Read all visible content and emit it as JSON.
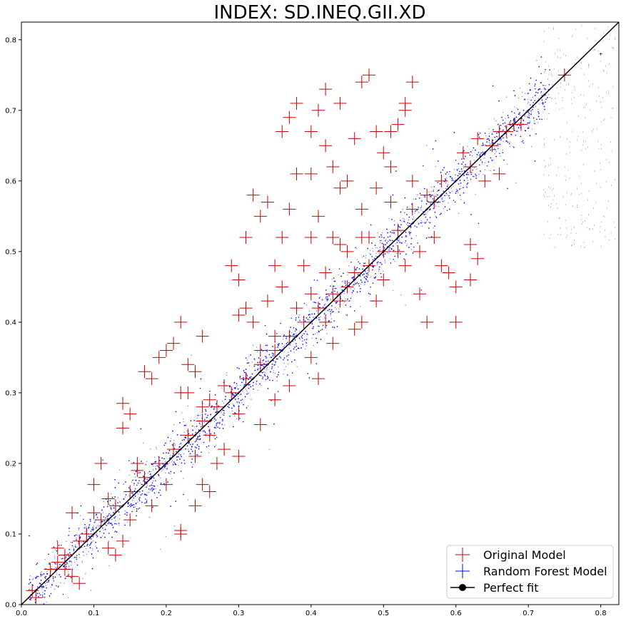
{
  "chart_data": {
    "type": "scatter",
    "title": "INDEX: SD.INEQ.GII.XD",
    "xlabel": "",
    "ylabel": "",
    "xlim": [
      0.0,
      0.825
    ],
    "ylim": [
      0.0,
      0.825
    ],
    "x_ticks": [
      "0.0",
      "0.1",
      "0.2",
      "0.3",
      "0.4",
      "0.5",
      "0.6",
      "0.7",
      "0.8"
    ],
    "y_ticks": [
      "0.0",
      "0.1",
      "0.2",
      "0.3",
      "0.4",
      "0.5",
      "0.6",
      "0.7",
      "0.8"
    ],
    "grid": false,
    "legend_position": "lower-right",
    "colors": {
      "original": "#cc0000",
      "random_forest": "#0000ff",
      "perfect_fit": "#000000"
    },
    "series": [
      {
        "name": "Original Model",
        "marker": "plus",
        "points": [
          [
            0.015,
            0.02
          ],
          [
            0.02,
            0.01
          ],
          [
            0.04,
            0.05
          ],
          [
            0.05,
            0.08
          ],
          [
            0.05,
            0.06
          ],
          [
            0.06,
            0.05
          ],
          [
            0.07,
            0.04
          ],
          [
            0.08,
            0.03
          ],
          [
            0.07,
            0.13
          ],
          [
            0.09,
            0.1
          ],
          [
            0.1,
            0.17
          ],
          [
            0.11,
            0.2
          ],
          [
            0.12,
            0.08
          ],
          [
            0.13,
            0.07
          ],
          [
            0.14,
            0.09
          ],
          [
            0.15,
            0.12
          ],
          [
            0.14,
            0.285
          ],
          [
            0.15,
            0.27
          ],
          [
            0.14,
            0.25
          ],
          [
            0.16,
            0.2
          ],
          [
            0.17,
            0.33
          ],
          [
            0.18,
            0.32
          ],
          [
            0.19,
            0.35
          ],
          [
            0.2,
            0.36
          ],
          [
            0.21,
            0.37
          ],
          [
            0.22,
            0.4
          ],
          [
            0.23,
            0.34
          ],
          [
            0.23,
            0.3
          ],
          [
            0.24,
            0.33
          ],
          [
            0.22,
            0.3
          ],
          [
            0.25,
            0.38
          ],
          [
            0.25,
            0.28
          ],
          [
            0.24,
            0.14
          ],
          [
            0.26,
            0.16
          ],
          [
            0.25,
            0.17
          ],
          [
            0.22,
            0.1
          ],
          [
            0.22,
            0.105
          ],
          [
            0.26,
            0.24
          ],
          [
            0.27,
            0.2
          ],
          [
            0.28,
            0.22
          ],
          [
            0.29,
            0.48
          ],
          [
            0.3,
            0.46
          ],
          [
            0.31,
            0.52
          ],
          [
            0.32,
            0.58
          ],
          [
            0.33,
            0.55
          ],
          [
            0.34,
            0.57
          ],
          [
            0.35,
            0.48
          ],
          [
            0.36,
            0.52
          ],
          [
            0.36,
            0.67
          ],
          [
            0.37,
            0.69
          ],
          [
            0.38,
            0.71
          ],
          [
            0.4,
            0.67
          ],
          [
            0.41,
            0.7
          ],
          [
            0.42,
            0.65
          ],
          [
            0.42,
            0.73
          ],
          [
            0.44,
            0.71
          ],
          [
            0.46,
            0.66
          ],
          [
            0.47,
            0.74
          ],
          [
            0.48,
            0.75
          ],
          [
            0.49,
            0.67
          ],
          [
            0.5,
            0.64
          ],
          [
            0.51,
            0.67
          ],
          [
            0.52,
            0.68
          ],
          [
            0.53,
            0.7
          ],
          [
            0.53,
            0.71
          ],
          [
            0.54,
            0.74
          ],
          [
            0.51,
            0.62
          ],
          [
            0.49,
            0.59
          ],
          [
            0.45,
            0.6
          ],
          [
            0.47,
            0.56
          ],
          [
            0.43,
            0.62
          ],
          [
            0.44,
            0.59
          ],
          [
            0.4,
            0.61
          ],
          [
            0.41,
            0.55
          ],
          [
            0.38,
            0.61
          ],
          [
            0.37,
            0.56
          ],
          [
            0.39,
            0.48
          ],
          [
            0.42,
            0.47
          ],
          [
            0.45,
            0.5
          ],
          [
            0.43,
            0.52
          ],
          [
            0.3,
            0.21
          ],
          [
            0.33,
            0.255
          ],
          [
            0.31,
            0.42
          ],
          [
            0.32,
            0.4
          ],
          [
            0.35,
            0.38
          ],
          [
            0.3,
            0.41
          ],
          [
            0.33,
            0.36
          ],
          [
            0.35,
            0.29
          ],
          [
            0.37,
            0.31
          ],
          [
            0.4,
            0.35
          ],
          [
            0.41,
            0.32
          ],
          [
            0.43,
            0.37
          ],
          [
            0.46,
            0.39
          ],
          [
            0.47,
            0.4
          ],
          [
            0.49,
            0.43
          ],
          [
            0.5,
            0.46
          ],
          [
            0.53,
            0.48
          ],
          [
            0.55,
            0.5
          ],
          [
            0.57,
            0.52
          ],
          [
            0.58,
            0.48
          ],
          [
            0.6,
            0.45
          ],
          [
            0.59,
            0.47
          ],
          [
            0.55,
            0.44
          ],
          [
            0.56,
            0.4
          ],
          [
            0.6,
            0.4
          ],
          [
            0.62,
            0.51
          ],
          [
            0.62,
            0.46
          ],
          [
            0.63,
            0.49
          ],
          [
            0.64,
            0.6
          ],
          [
            0.66,
            0.61
          ],
          [
            0.67,
            0.67
          ],
          [
            0.69,
            0.68
          ],
          [
            0.75,
            0.75
          ],
          [
            0.62,
            0.62
          ],
          [
            0.65,
            0.65
          ],
          [
            0.57,
            0.57
          ],
          [
            0.54,
            0.56
          ],
          [
            0.52,
            0.53
          ],
          [
            0.5,
            0.5
          ],
          [
            0.48,
            0.48
          ],
          [
            0.45,
            0.45
          ],
          [
            0.43,
            0.44
          ],
          [
            0.41,
            0.42
          ],
          [
            0.39,
            0.4
          ],
          [
            0.37,
            0.38
          ],
          [
            0.35,
            0.36
          ],
          [
            0.33,
            0.34
          ],
          [
            0.31,
            0.32
          ],
          [
            0.29,
            0.3
          ],
          [
            0.27,
            0.28
          ],
          [
            0.25,
            0.26
          ],
          [
            0.23,
            0.24
          ],
          [
            0.21,
            0.22
          ],
          [
            0.19,
            0.2
          ],
          [
            0.17,
            0.18
          ],
          [
            0.15,
            0.16
          ],
          [
            0.13,
            0.14
          ],
          [
            0.11,
            0.12
          ],
          [
            0.09,
            0.1
          ],
          [
            0.08,
            0.09
          ],
          [
            0.06,
            0.07
          ],
          [
            0.1,
            0.13
          ],
          [
            0.12,
            0.15
          ],
          [
            0.16,
            0.19
          ],
          [
            0.18,
            0.14
          ],
          [
            0.2,
            0.17
          ],
          [
            0.24,
            0.21
          ],
          [
            0.26,
            0.29
          ],
          [
            0.28,
            0.31
          ],
          [
            0.3,
            0.27
          ],
          [
            0.34,
            0.43
          ],
          [
            0.36,
            0.45
          ],
          [
            0.38,
            0.42
          ],
          [
            0.4,
            0.44
          ],
          [
            0.42,
            0.4
          ],
          [
            0.44,
            0.43
          ],
          [
            0.46,
            0.47
          ],
          [
            0.48,
            0.52
          ],
          [
            0.52,
            0.5
          ],
          [
            0.56,
            0.58
          ],
          [
            0.58,
            0.6
          ],
          [
            0.61,
            0.64
          ],
          [
            0.63,
            0.66
          ],
          [
            0.66,
            0.67
          ],
          [
            0.68,
            0.68
          ],
          [
            0.54,
            0.6
          ],
          [
            0.51,
            0.57
          ],
          [
            0.47,
            0.52
          ],
          [
            0.44,
            0.51
          ],
          [
            0.4,
            0.52
          ]
        ]
      },
      {
        "name": "Random Forest Model",
        "marker": "plus",
        "points": [
          [
            0.02,
            0.02
          ],
          [
            0.04,
            0.05
          ],
          [
            0.06,
            0.06
          ],
          [
            0.08,
            0.08
          ],
          [
            0.1,
            0.1
          ],
          [
            0.12,
            0.12
          ],
          [
            0.14,
            0.14
          ],
          [
            0.16,
            0.16
          ],
          [
            0.18,
            0.18
          ],
          [
            0.2,
            0.2
          ],
          [
            0.22,
            0.22
          ],
          [
            0.24,
            0.24
          ],
          [
            0.26,
            0.26
          ],
          [
            0.28,
            0.28
          ],
          [
            0.3,
            0.3
          ],
          [
            0.32,
            0.32
          ],
          [
            0.34,
            0.34
          ],
          [
            0.36,
            0.36
          ],
          [
            0.38,
            0.38
          ],
          [
            0.4,
            0.4
          ],
          [
            0.42,
            0.42
          ],
          [
            0.44,
            0.44
          ],
          [
            0.46,
            0.46
          ],
          [
            0.48,
            0.48
          ],
          [
            0.5,
            0.5
          ],
          [
            0.52,
            0.52
          ],
          [
            0.54,
            0.54
          ],
          [
            0.56,
            0.56
          ],
          [
            0.58,
            0.58
          ],
          [
            0.6,
            0.6
          ],
          [
            0.62,
            0.62
          ],
          [
            0.64,
            0.64
          ],
          [
            0.66,
            0.66
          ],
          [
            0.68,
            0.68
          ],
          [
            0.7,
            0.7
          ],
          [
            0.72,
            0.71
          ],
          [
            0.75,
            0.75
          ],
          [
            0.8,
            0.78
          ]
        ]
      },
      {
        "name": "Perfect fit",
        "marker": "line",
        "points": [
          [
            0.0,
            0.0
          ],
          [
            0.825,
            0.825
          ]
        ]
      }
    ]
  }
}
